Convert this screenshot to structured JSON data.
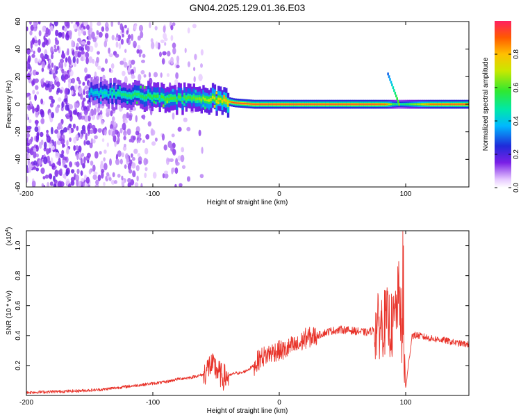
{
  "title": "GN04.2025.129.01.36.E03",
  "chart_data": [
    {
      "type": "heatmap",
      "xlabel": "Height of straight line (km)",
      "ylabel": "Frequency (Hz)",
      "xlim": [
        -200,
        150
      ],
      "ylim": [
        -60,
        60
      ],
      "x_ticks": [
        -200,
        -100,
        0,
        100
      ],
      "y_ticks": [
        -60,
        -40,
        -20,
        0,
        20,
        40,
        60
      ],
      "colorbar": {
        "label": "Normalized spectral amplitude",
        "range": [
          0.0,
          1.0
        ],
        "ticks": [
          0.0,
          0.2,
          0.4,
          0.6,
          0.8
        ],
        "tick_labels": [
          "0.0",
          "0.2",
          "0.4",
          "0.6",
          "0.8"
        ]
      },
      "ridge": {
        "x": [
          -150,
          -130,
          -110,
          -90,
          -70,
          -55,
          -45,
          -35,
          -20,
          0,
          20,
          40,
          60,
          75,
          85,
          90,
          95,
          100,
          120,
          150
        ],
        "center_freq": [
          8,
          8,
          6,
          4,
          4,
          4,
          3,
          1,
          0,
          0,
          0,
          0,
          0,
          0,
          0,
          0,
          0,
          0,
          0,
          0
        ],
        "peak_amplitude": [
          0.4,
          0.5,
          0.55,
          0.6,
          0.6,
          0.7,
          0.75,
          0.95,
          0.95,
          0.95,
          0.95,
          0.95,
          0.95,
          0.95,
          0.9,
          0.6,
          0.5,
          0.55,
          0.9,
          0.95
        ]
      }
    },
    {
      "type": "line",
      "xlabel": "Height of straight line (km)",
      "ylabel": "SNR (10 * v/v)",
      "y_multiplier": "(x10^4)",
      "xlim": [
        -200,
        150
      ],
      "ylim": [
        0,
        1.1
      ],
      "x_ticks": [
        -200,
        -100,
        0,
        100
      ],
      "y_ticks": [
        0.2,
        0.4,
        0.6,
        0.8,
        1.0
      ],
      "color": "#e8332a",
      "series": [
        {
          "x": [
            -200,
            -180,
            -160,
            -150,
            -140,
            -120,
            -100,
            -90,
            -80,
            -70,
            -60,
            -55,
            -50,
            -45,
            -40,
            -35,
            -30,
            -25,
            -20,
            -15,
            -10,
            -5,
            0,
            5,
            10,
            15,
            20,
            30,
            40,
            50,
            60,
            70,
            75,
            80,
            85,
            90,
            95,
            97,
            100,
            105,
            110,
            120,
            130,
            140,
            150
          ],
          "values": [
            0.02,
            0.025,
            0.03,
            0.035,
            0.04,
            0.06,
            0.08,
            0.09,
            0.11,
            0.12,
            0.14,
            0.2,
            0.18,
            0.12,
            0.13,
            0.15,
            0.15,
            0.17,
            0.2,
            0.25,
            0.27,
            0.29,
            0.3,
            0.3,
            0.33,
            0.33,
            0.38,
            0.4,
            0.43,
            0.44,
            0.43,
            0.42,
            0.44,
            0.47,
            0.5,
            0.45,
            0.7,
            0.4,
            0.05,
            0.4,
            0.4,
            0.38,
            0.37,
            0.35,
            0.34
          ]
        }
      ]
    }
  ]
}
